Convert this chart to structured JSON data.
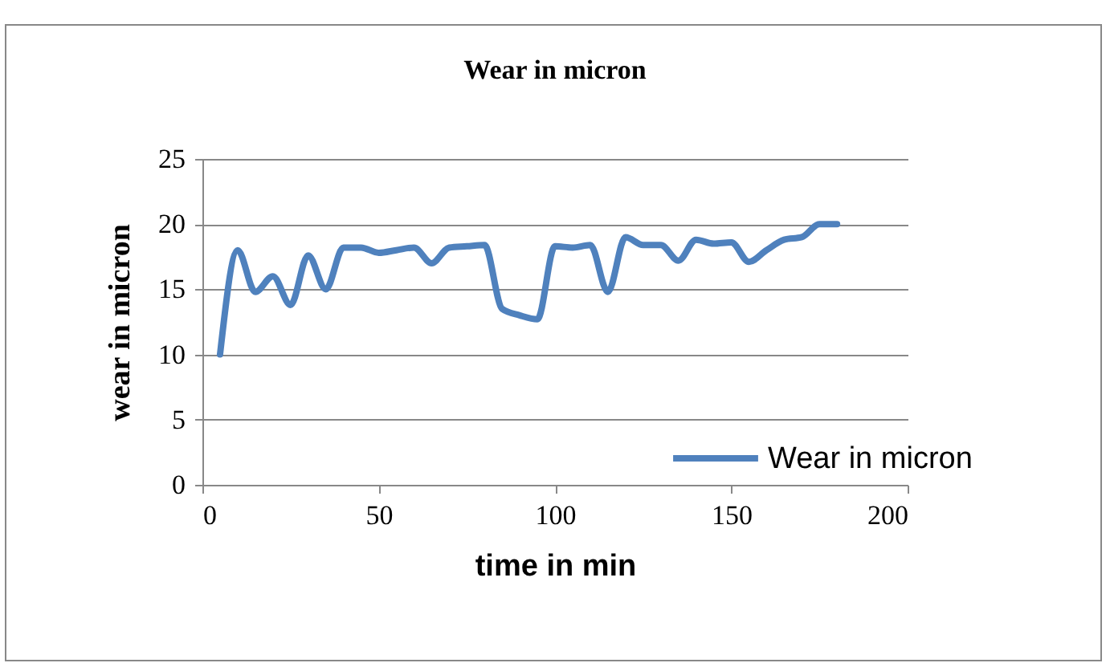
{
  "chart_data": {
    "type": "line",
    "title": "Wear in micron",
    "xlabel": "time in min",
    "ylabel": "wear in micron",
    "x": [
      5,
      10,
      15,
      20,
      25,
      30,
      35,
      40,
      45,
      50,
      55,
      60,
      65,
      70,
      75,
      80,
      85,
      90,
      95,
      100,
      105,
      110,
      115,
      120,
      125,
      130,
      135,
      140,
      145,
      150,
      155,
      160,
      165,
      170,
      175,
      180
    ],
    "series": [
      {
        "name": "Wear in micron",
        "color": "#4f81bd",
        "values": [
          10,
          18,
          14.8,
          16,
          13.8,
          17.6,
          15,
          18.2,
          18.2,
          17.8,
          18,
          18.2,
          17,
          18.2,
          18.3,
          18.4,
          13.5,
          13,
          12.7,
          18.3,
          18.2,
          18.4,
          14.8,
          19,
          18.4,
          18.4,
          17.2,
          18.8,
          18.5,
          18.6,
          17.1,
          18,
          18.8,
          19,
          20,
          20
        ]
      }
    ],
    "xlim": [
      0,
      200
    ],
    "xticks": [
      0,
      50,
      100,
      150,
      200
    ],
    "ylim": [
      0,
      25
    ],
    "yticks": [
      0,
      5,
      10,
      15,
      20,
      25
    ],
    "grid": "y",
    "legend": "bottom right",
    "marker": "none",
    "line_style": "solid"
  }
}
